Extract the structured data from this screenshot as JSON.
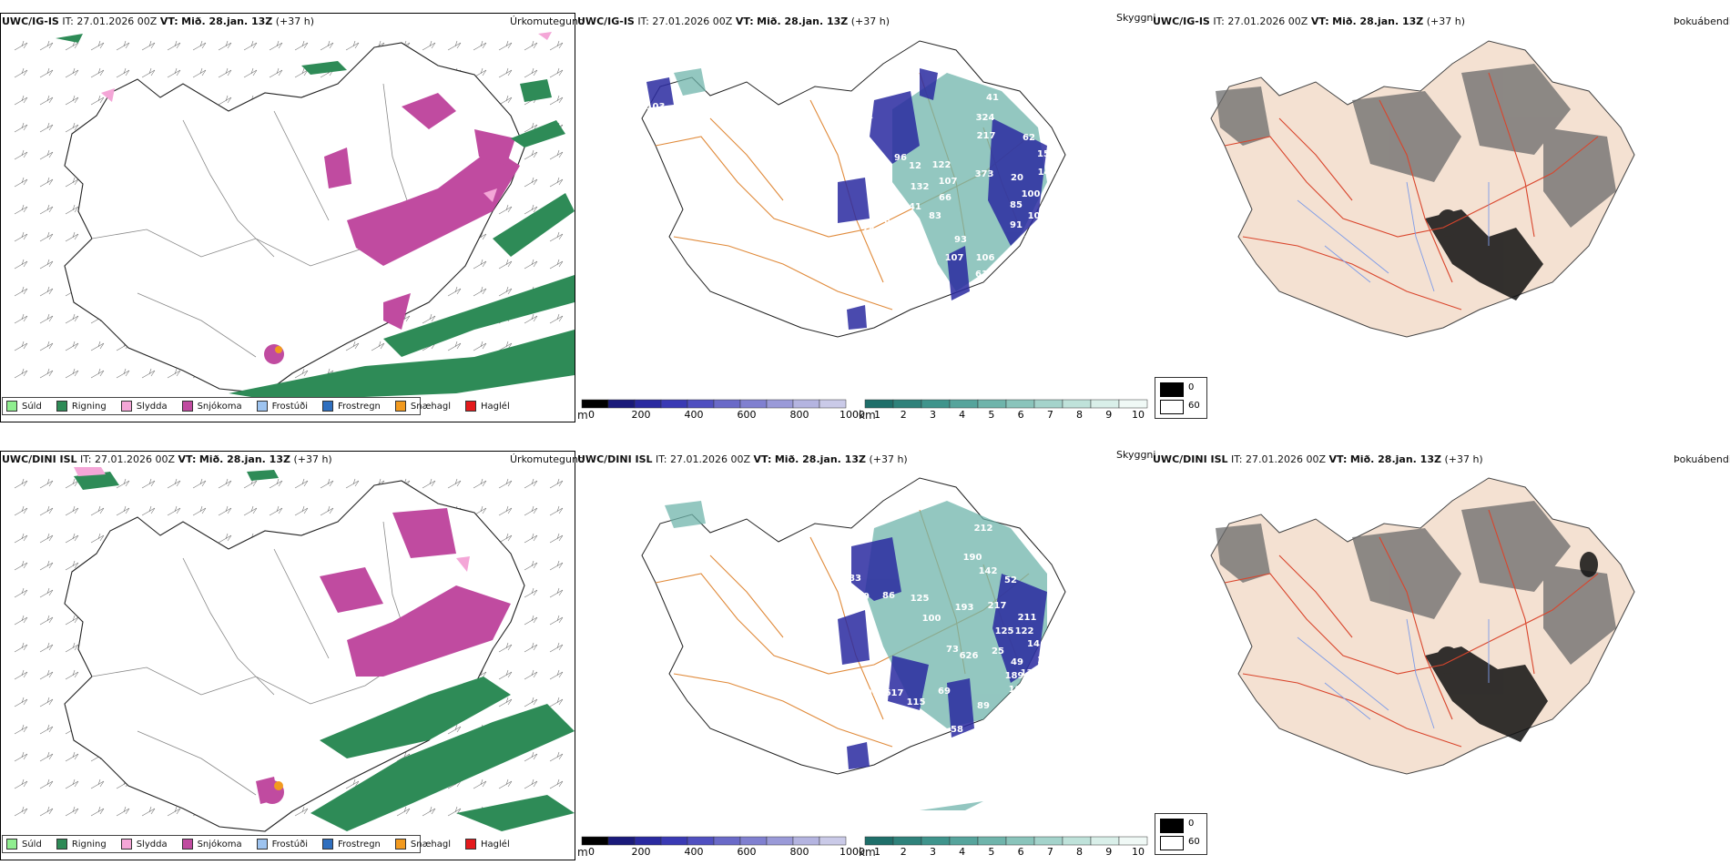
{
  "row_top": {
    "model": "UWC/IG-IS",
    "it_label": "IT:",
    "it_value": "27.01.2026 00Z",
    "vt_label": "VT:",
    "vt_value": "Mið. 28.jan. 13Z",
    "lead": "(+37 h)"
  },
  "row_bottom": {
    "model": "UWC/DINI ISL",
    "it_label": "IT:",
    "it_value": "27.01.2026 00Z",
    "vt_label": "VT:",
    "vt_value": "Mið. 28.jan. 13Z",
    "lead": "(+37 h)"
  },
  "panel_titles": {
    "precip": "Úrkomutegund",
    "ceiling": "Skyggni",
    "fog": "Þokuábendi"
  },
  "precip_legend": [
    {
      "label": "Súld",
      "color": "#90ee90"
    },
    {
      "label": "Rigning",
      "color": "#2e8b57"
    },
    {
      "label": "Slydda",
      "color": "#f4a6d7"
    },
    {
      "label": "Snjókoma",
      "color": "#c04ba0"
    },
    {
      "label": "Frostúði",
      "color": "#9ec4f0"
    },
    {
      "label": "Frostregn",
      "color": "#2f6fbf"
    },
    {
      "label": "Snæhagl",
      "color": "#f29a1f"
    },
    {
      "label": "Haglél",
      "color": "#e41a1c"
    }
  ],
  "ceiling_bar": {
    "unit": "m",
    "ticks": [
      "0",
      "200",
      "400",
      "600",
      "800",
      "1000"
    ],
    "colors": [
      "#000000",
      "#1a1a7a",
      "#2a2aa0",
      "#3a3ab4",
      "#5050c0",
      "#6a6ac8",
      "#8080d0",
      "#9a9ad8",
      "#b4b4e0",
      "#cacae8"
    ]
  },
  "visibility_bar": {
    "unit": "km",
    "ticks": [
      "1",
      "2",
      "3",
      "4",
      "5",
      "6",
      "7",
      "8",
      "9",
      "10"
    ],
    "colors": [
      "#1f6f6a",
      "#2f827b",
      "#3f948c",
      "#56a49c",
      "#6fb4ab",
      "#8ac4bb",
      "#a4d3cb",
      "#bfe2da",
      "#d9efe9",
      "#f0f9f6"
    ]
  },
  "fog_scale": {
    "values": [
      "0",
      "60"
    ],
    "colors": [
      "#000000",
      "#ffffff"
    ]
  },
  "labels_top": [
    "90",
    "103",
    "72",
    "61",
    "89",
    "96",
    "12",
    "132",
    "122",
    "107",
    "324",
    "217",
    "373",
    "83",
    "66",
    "93",
    "107",
    "106",
    "61",
    "41",
    "78",
    "78",
    "80",
    "62",
    "15",
    "149",
    "20",
    "100",
    "85",
    "107",
    "91",
    "72",
    "63",
    "41",
    "49",
    "48",
    "41"
  ],
  "labels_bottom": [
    "83",
    "79",
    "86",
    "125",
    "100",
    "193",
    "217",
    "73",
    "626",
    "25",
    "125",
    "69",
    "617",
    "115",
    "69",
    "89",
    "58",
    "41",
    "69",
    "91",
    "212",
    "190",
    "142",
    "52",
    "108",
    "13",
    "108",
    "122",
    "14",
    "49",
    "189",
    "136",
    "211"
  ]
}
